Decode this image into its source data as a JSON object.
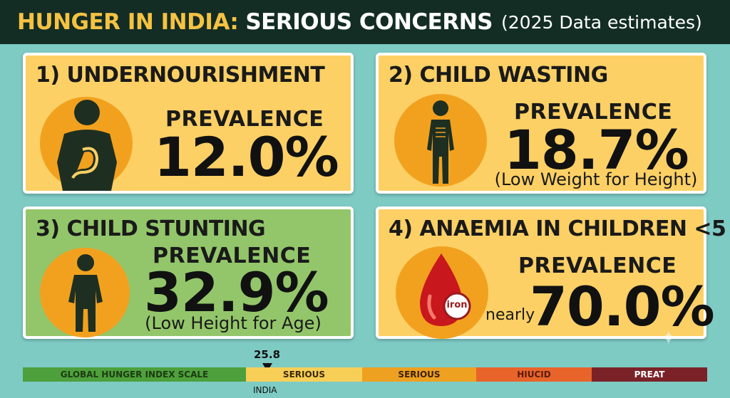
{
  "header": {
    "title_highlight": "HUNGER IN INDIA:",
    "title_main": "SERIOUS CONCERNS",
    "title_note": "(2025 Data estimates)"
  },
  "cards": [
    {
      "title": "1) UNDERNOURISHMENT",
      "icon": "person-stomach-icon",
      "label": "PREVALENCE",
      "value": "12.0%",
      "note": ""
    },
    {
      "title": "2) CHILD WASTING",
      "icon": "thin-child-icon",
      "label": "PREVALENCE",
      "value": "18.7%",
      "note": "(Low Weight for Height)"
    },
    {
      "title": "3) CHILD STUNTING",
      "icon": "child-icon",
      "label": "PREVALENCE",
      "value": "32.9%",
      "note": "(Low Height for Age)"
    },
    {
      "title": "4) ANAEMIA IN CHILDREN <5",
      "icon": "blood-drop-iron-icon",
      "icon_text": "iron",
      "label": "PREVALENCE",
      "prefix": "nearly",
      "value": "70.0%"
    }
  ],
  "scale": {
    "marker_value": "25.8",
    "marker_label": "INDIA",
    "segments": [
      {
        "label": "GLOBAL HUNGER INDEX SCALE",
        "color": "#4da03b",
        "text_color": "#1d3a12"
      },
      {
        "label": "SERIOUS",
        "color": "#f7cf57",
        "text_color": "#3a2a00"
      },
      {
        "label": "SERIOUS",
        "color": "#eea021",
        "text_color": "#3a2000"
      },
      {
        "label": "HIUCID",
        "color": "#e8642a",
        "text_color": "#5a1a06"
      },
      {
        "label": "PREAT",
        "color": "#7a2228",
        "text_color": "#ffffff"
      }
    ]
  },
  "colors": {
    "background": "#7ecbc4",
    "header_bg": "#132d25",
    "accent": "#f5c242",
    "card_yellow": "#fcd065",
    "card_green": "#93c66a",
    "circle": "#f2a11f"
  }
}
